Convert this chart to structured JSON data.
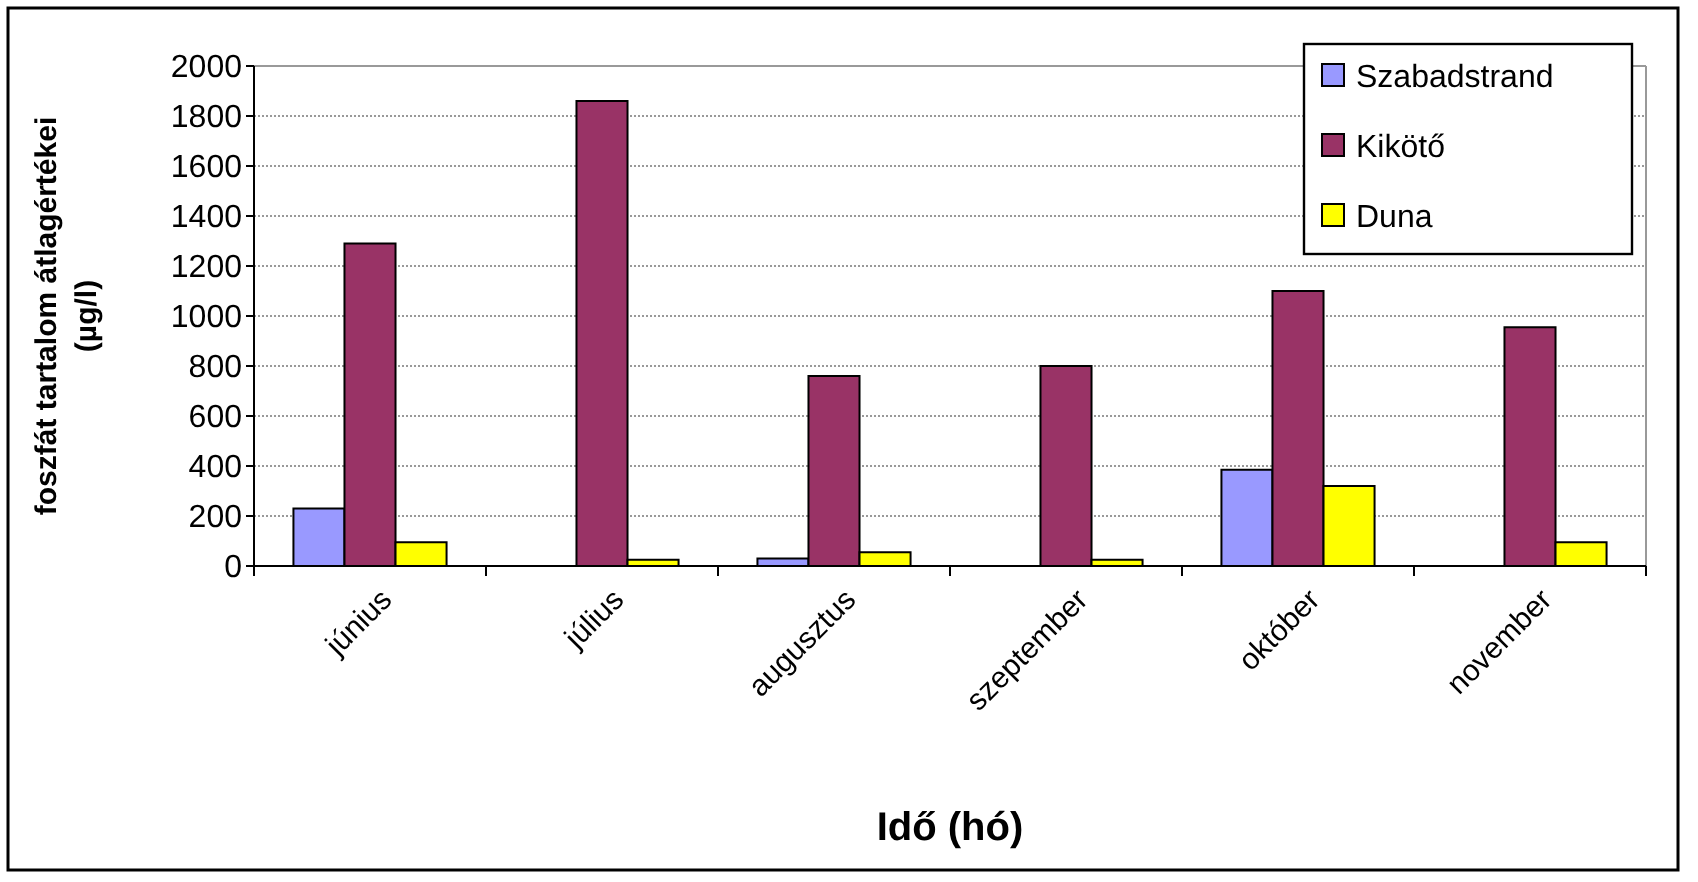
{
  "chart_data": {
    "type": "bar",
    "xlabel": "Idő (hó)",
    "ylabel": "foszfát tartalom átlagértékei\n(µg/l)",
    "categories": [
      "június",
      "július",
      "augusztus",
      "szeptember",
      "október",
      "november"
    ],
    "series": [
      {
        "name": "Szabadstrand",
        "color": "#9999ff",
        "values": [
          230,
          0,
          30,
          0,
          385,
          0
        ]
      },
      {
        "name": "Kikötő",
        "color": "#993366",
        "values": [
          1290,
          1860,
          760,
          800,
          1100,
          955
        ]
      },
      {
        "name": "Duna",
        "color": "#ffff00",
        "values": [
          95,
          25,
          55,
          25,
          320,
          95
        ]
      }
    ],
    "ylim": [
      0,
      2000
    ],
    "yticks": [
      0,
      200,
      400,
      600,
      800,
      1000,
      1200,
      1400,
      1600,
      1800,
      2000
    ],
    "grid": "y",
    "legend": "top right"
  }
}
